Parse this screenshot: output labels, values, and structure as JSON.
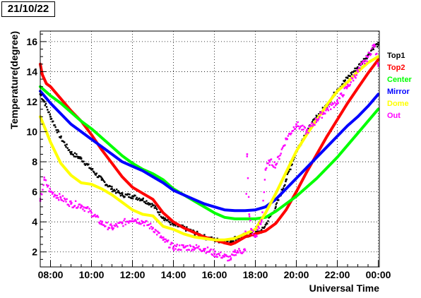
{
  "title": "21/10/22",
  "chart_data": {
    "type": "line",
    "title": "21/10/22",
    "xlabel": "Universal Time",
    "ylabel": "Temperature(degree)",
    "xlim": [
      7.5,
      24.05
    ],
    "ylim": [
      1,
      16.7
    ],
    "x_ticks": [
      8,
      10,
      12,
      14,
      16,
      18,
      20,
      22,
      24
    ],
    "x_tick_labels": [
      "08:00",
      "10:00",
      "12:00",
      "14:00",
      "16:00",
      "18:00",
      "20:00",
      "22:00",
      "00:00"
    ],
    "y_ticks": [
      2,
      4,
      6,
      8,
      10,
      12,
      14,
      16
    ],
    "y_tick_labels": [
      "2",
      "4",
      "6",
      "8",
      "10",
      "12",
      "14",
      "16"
    ],
    "grid": true,
    "legend_position": "right",
    "series": [
      {
        "name": "Top1",
        "color": "#000000",
        "style": "points",
        "x": [
          7.5,
          7.7,
          8.0,
          8.5,
          9.0,
          9.5,
          10.0,
          10.5,
          11.0,
          11.5,
          12.0,
          12.5,
          13.0,
          13.5,
          14.0,
          14.5,
          15.0,
          15.5,
          16.0,
          16.5,
          16.8,
          17.0,
          17.5,
          18.0,
          18.3,
          18.5,
          19.0,
          19.5,
          20.0,
          20.5,
          21.0,
          21.5,
          22.0,
          22.5,
          23.0,
          23.5,
          23.8,
          24.0
        ],
        "y": [
          12.5,
          12.0,
          11.0,
          9.6,
          8.6,
          8.2,
          7.5,
          6.8,
          6.2,
          5.8,
          5.7,
          5.5,
          5.1,
          4.3,
          3.8,
          3.6,
          3.3,
          3.0,
          2.8,
          2.7,
          2.7,
          2.9,
          3.1,
          3.2,
          3.4,
          3.8,
          5.0,
          6.8,
          8.7,
          10.0,
          11.0,
          11.8,
          12.8,
          13.6,
          14.3,
          15.1,
          15.7,
          15.8
        ]
      },
      {
        "name": "Top2",
        "color": "#ff0000",
        "style": "line",
        "x": [
          7.5,
          7.6,
          7.8,
          8.0,
          8.5,
          9.0,
          9.5,
          10.0,
          10.5,
          11.0,
          11.5,
          12.0,
          12.5,
          13.0,
          13.5,
          14.0,
          14.5,
          15.0,
          15.5,
          16.0,
          16.5,
          16.8,
          17.0,
          17.5,
          18.0,
          18.5,
          19.0,
          19.5,
          20.0,
          20.5,
          21.0,
          21.5,
          22.0,
          22.5,
          23.0,
          23.5,
          24.0
        ],
        "y": [
          14.5,
          13.8,
          13.2,
          13.0,
          12.2,
          11.4,
          10.7,
          9.8,
          8.8,
          7.9,
          7.0,
          6.3,
          5.9,
          5.5,
          4.6,
          4.0,
          3.6,
          3.3,
          3.0,
          2.8,
          2.6,
          2.5,
          2.6,
          3.0,
          3.2,
          3.4,
          3.9,
          4.8,
          6.0,
          7.3,
          8.5,
          9.7,
          10.8,
          11.9,
          12.9,
          13.9,
          14.8
        ]
      },
      {
        "name": "Center",
        "color": "#00ff00",
        "style": "line",
        "x": [
          7.5,
          8.0,
          8.5,
          9.0,
          9.5,
          10.0,
          10.5,
          11.0,
          11.5,
          12.0,
          12.5,
          13.0,
          13.5,
          14.0,
          14.5,
          15.0,
          15.5,
          16.0,
          16.5,
          17.0,
          17.5,
          18.0,
          18.5,
          19.0,
          19.5,
          20.0,
          20.5,
          21.0,
          21.5,
          22.0,
          22.5,
          23.0,
          23.5,
          24.0
        ],
        "y": [
          13.0,
          12.4,
          11.9,
          11.3,
          10.7,
          10.2,
          9.6,
          9.0,
          8.4,
          7.9,
          7.5,
          7.2,
          6.8,
          6.2,
          5.8,
          5.4,
          5.0,
          4.6,
          4.3,
          4.2,
          4.2,
          4.2,
          4.3,
          4.7,
          5.2,
          5.7,
          6.3,
          6.9,
          7.6,
          8.3,
          9.1,
          9.9,
          10.7,
          11.5
        ]
      },
      {
        "name": "Mirror",
        "color": "#0000ff",
        "style": "line",
        "x": [
          7.5,
          8.0,
          8.5,
          9.0,
          9.5,
          10.0,
          10.5,
          11.0,
          11.5,
          12.0,
          12.5,
          13.0,
          13.5,
          14.0,
          14.5,
          15.0,
          15.5,
          16.0,
          16.5,
          17.0,
          17.5,
          18.0,
          18.5,
          19.0,
          19.5,
          20.0,
          20.5,
          21.0,
          21.5,
          22.0,
          22.5,
          23.0,
          23.5,
          24.0
        ],
        "y": [
          12.7,
          11.9,
          11.2,
          10.5,
          10.0,
          9.5,
          9.0,
          8.5,
          8.0,
          7.7,
          7.4,
          7.0,
          6.6,
          6.1,
          5.8,
          5.5,
          5.2,
          5.0,
          4.8,
          4.75,
          4.75,
          4.8,
          5.0,
          5.5,
          6.2,
          6.9,
          7.6,
          8.3,
          9.0,
          9.7,
          10.4,
          11.0,
          11.7,
          12.5
        ]
      },
      {
        "name": "Dome",
        "color": "#ffff00",
        "style": "line",
        "x": [
          7.5,
          7.8,
          8.0,
          8.5,
          9.0,
          9.5,
          10.0,
          10.5,
          11.0,
          11.5,
          12.0,
          12.5,
          13.0,
          13.5,
          14.0,
          14.5,
          15.0,
          15.5,
          16.0,
          16.5,
          17.0,
          17.5,
          18.0,
          18.5,
          19.0,
          19.5,
          20.0,
          20.5,
          21.0,
          21.5,
          22.0,
          22.5,
          23.0,
          23.5,
          24.0
        ],
        "y": [
          11.0,
          10.0,
          9.3,
          7.9,
          7.1,
          6.6,
          6.5,
          6.2,
          5.8,
          5.3,
          4.8,
          4.5,
          4.4,
          3.7,
          3.5,
          3.2,
          3.0,
          2.9,
          2.8,
          2.8,
          2.9,
          3.2,
          3.5,
          4.6,
          5.9,
          7.3,
          8.7,
          9.8,
          10.8,
          11.8,
          12.7,
          13.3,
          14.0,
          14.6,
          15.0
        ]
      },
      {
        "name": "Out",
        "color": "#ff00ff",
        "style": "points",
        "x": [
          7.5,
          7.7,
          8.0,
          8.5,
          9.0,
          9.5,
          10.0,
          10.5,
          11.0,
          11.5,
          12.0,
          12.5,
          13.0,
          13.5,
          14.0,
          14.5,
          15.0,
          15.5,
          16.0,
          16.5,
          16.8,
          17.0,
          17.5,
          17.6,
          17.7,
          17.8,
          18.0,
          18.3,
          18.5,
          18.7,
          19.0,
          19.5,
          20.0,
          20.5,
          21.0,
          21.5,
          22.0,
          22.5,
          23.0,
          23.5,
          23.8,
          24.0
        ],
        "y": [
          5.4,
          6.8,
          6.0,
          5.6,
          5.2,
          5.1,
          4.6,
          3.9,
          3.6,
          3.9,
          4.2,
          4.0,
          3.6,
          2.8,
          2.3,
          2.3,
          2.3,
          2.2,
          1.9,
          1.7,
          1.5,
          2.0,
          2.1,
          8.5,
          4.5,
          3.5,
          3.0,
          4.0,
          7.5,
          8.0,
          7.8,
          9.5,
          10.5,
          10.0,
          10.8,
          11.5,
          12.0,
          13.0,
          14.0,
          15.0,
          15.8,
          14.5
        ]
      }
    ]
  }
}
